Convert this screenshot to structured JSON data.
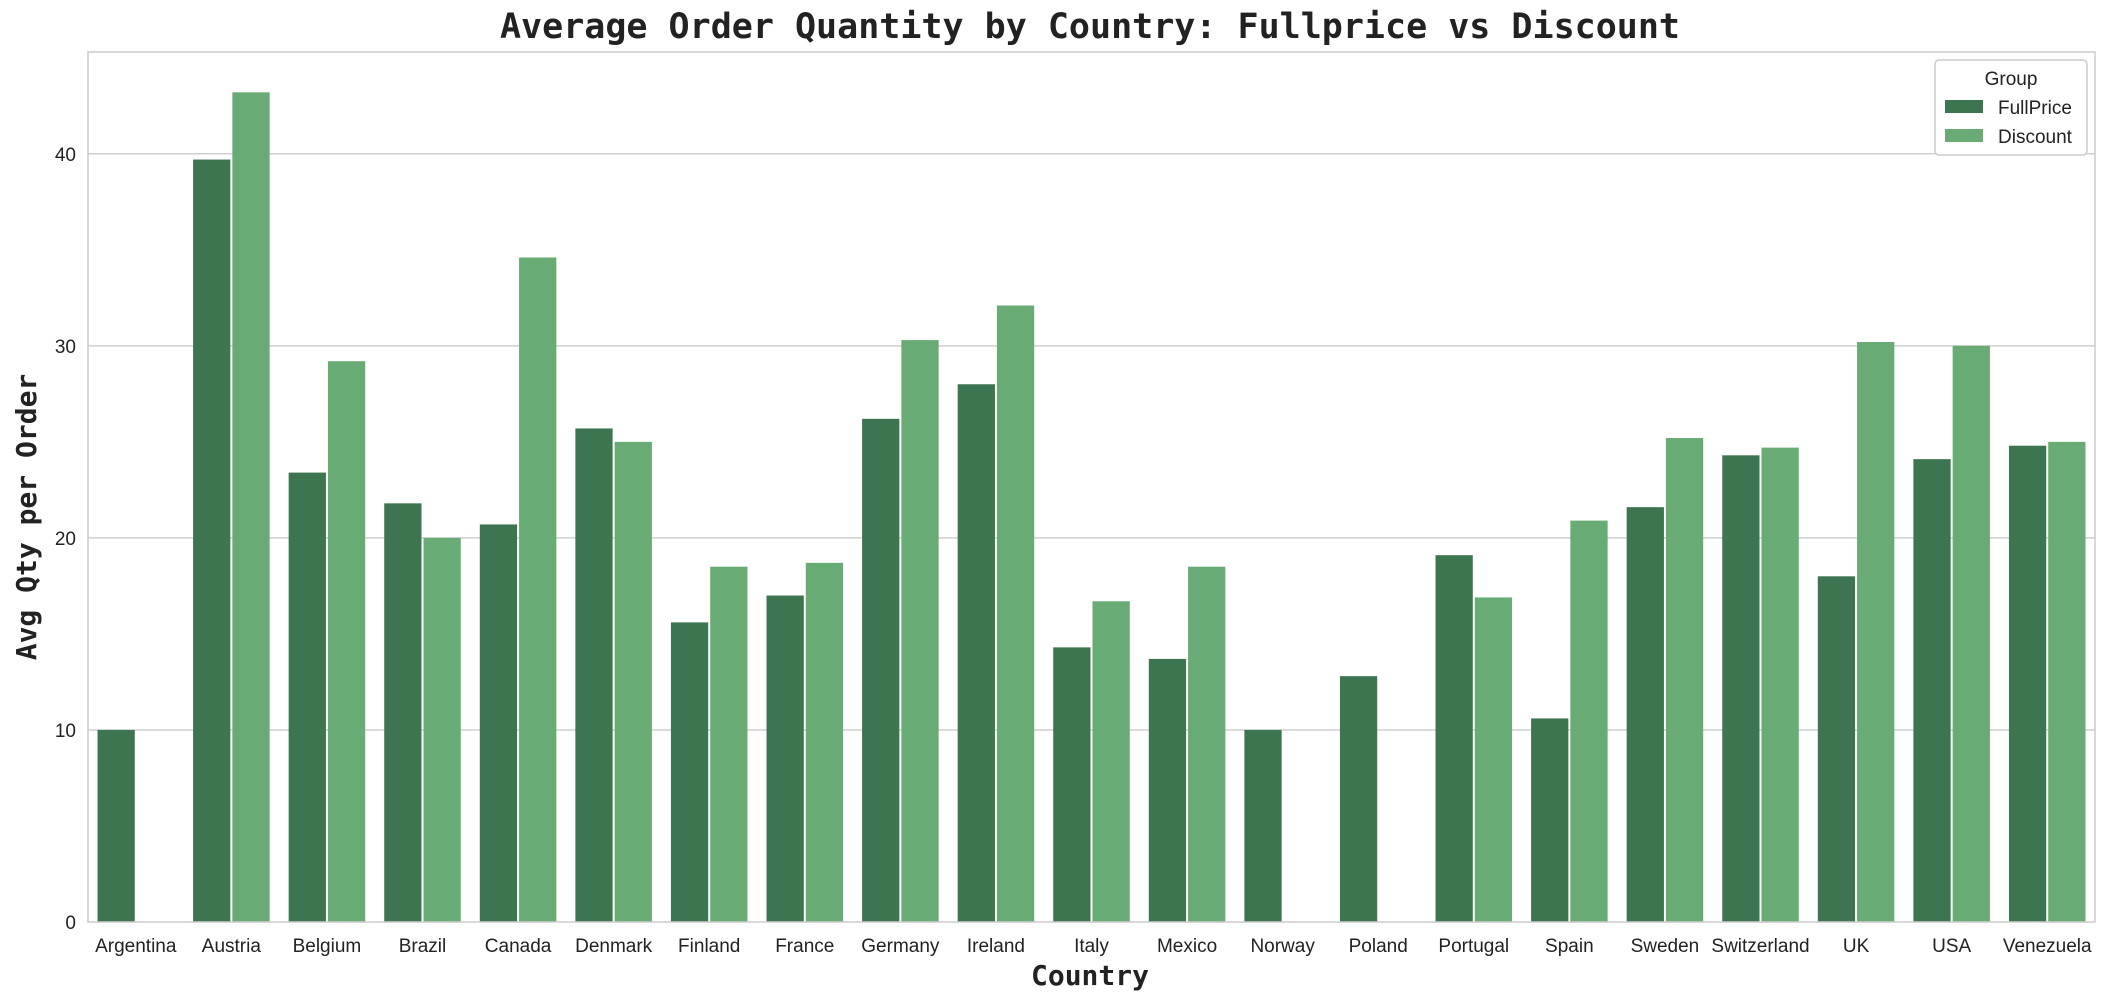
{
  "chart_data": {
    "type": "bar",
    "title": "Average Order Quantity by Country: Fullprice vs Discount",
    "xlabel": "Country",
    "ylabel": "Avg Qty per Order",
    "ylim": [
      0,
      45.3
    ],
    "yticks": [
      0,
      10,
      20,
      30,
      40
    ],
    "grid": "horizontal",
    "legend": {
      "title": "Group",
      "placement": "top-right"
    },
    "categories": [
      "Argentina",
      "Austria",
      "Belgium",
      "Brazil",
      "Canada",
      "Denmark",
      "Finland",
      "France",
      "Germany",
      "Ireland",
      "Italy",
      "Mexico",
      "Norway",
      "Poland",
      "Portugal",
      "Spain",
      "Sweden",
      "Switzerland",
      "UK",
      "USA",
      "Venezuela"
    ],
    "series": [
      {
        "name": "FullPrice",
        "color": "#3d7550",
        "values": [
          10.0,
          39.7,
          23.4,
          21.8,
          20.7,
          25.7,
          15.6,
          17.0,
          26.2,
          28.0,
          14.3,
          13.7,
          10.0,
          12.8,
          19.1,
          10.6,
          21.6,
          24.3,
          18.0,
          24.1,
          24.8
        ]
      },
      {
        "name": "Discount",
        "color": "#68ab74",
        "values": [
          null,
          43.2,
          29.2,
          20.0,
          34.6,
          25.0,
          18.5,
          18.7,
          30.3,
          32.1,
          16.7,
          18.5,
          null,
          null,
          16.9,
          20.9,
          25.2,
          24.7,
          30.2,
          30.0,
          25.0
        ]
      }
    ]
  }
}
